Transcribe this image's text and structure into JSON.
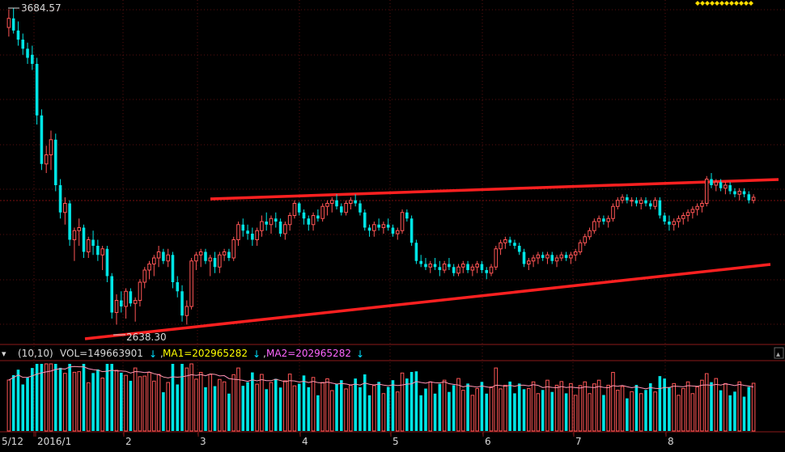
{
  "chart_data": {
    "type": "candlestick",
    "price_panel": {
      "high_label": "3684.57",
      "low_label": "2638.30",
      "y_range": [
        2580,
        3700
      ],
      "high": 3684.57,
      "low": 2638.3
    },
    "volume_panel": {
      "header_prefix": "(10,10)",
      "indicators": [
        {
          "name": "VOL",
          "text": "VOL=149663901",
          "color": "#dddddd"
        },
        {
          "name": "MA1",
          "text": "MA1=202965282",
          "color": "#ffff00"
        },
        {
          "name": "MA2",
          "text": "MA2=202965282",
          "color": "#ff66ff"
        }
      ]
    },
    "x_axis_labels": [
      "5/12",
      "2016/1",
      "2",
      "3",
      "4",
      "5",
      "6",
      "7",
      "8"
    ],
    "trendlines": [
      {
        "name": "resistance",
        "color": "#ff2020"
      },
      {
        "name": "support",
        "color": "#ff2020"
      }
    ],
    "candles": [
      [
        3620,
        3680,
        3590,
        3650
      ],
      [
        3650,
        3684,
        3600,
        3610
      ],
      [
        3610,
        3640,
        3560,
        3580
      ],
      [
        3580,
        3600,
        3530,
        3550
      ],
      [
        3550,
        3570,
        3500,
        3520
      ],
      [
        3530,
        3560,
        3480,
        3500
      ],
      [
        3500,
        3520,
        3300,
        3330
      ],
      [
        3330,
        3350,
        3150,
        3170
      ],
      [
        3170,
        3230,
        3140,
        3200
      ],
      [
        3200,
        3280,
        3150,
        3250
      ],
      [
        3250,
        3270,
        3080,
        3100
      ],
      [
        3100,
        3120,
        2990,
        3010
      ],
      [
        3010,
        3060,
        2970,
        3040
      ],
      [
        3040,
        3050,
        2900,
        2920
      ],
      [
        2920,
        2960,
        2850,
        2950
      ],
      [
        2950,
        2990,
        2900,
        2960
      ],
      [
        2960,
        2970,
        2860,
        2880
      ],
      [
        2880,
        2930,
        2860,
        2920
      ],
      [
        2920,
        2950,
        2870,
        2900
      ],
      [
        2900,
        2920,
        2850,
        2870
      ],
      [
        2870,
        2900,
        2820,
        2890
      ],
      [
        2890,
        2900,
        2780,
        2800
      ],
      [
        2800,
        2810,
        2660,
        2680
      ],
      [
        2680,
        2740,
        2640,
        2720
      ],
      [
        2720,
        2750,
        2680,
        2700
      ],
      [
        2700,
        2760,
        2660,
        2750
      ],
      [
        2750,
        2760,
        2700,
        2710
      ],
      [
        2710,
        2730,
        2650,
        2720
      ],
      [
        2720,
        2790,
        2700,
        2780
      ],
      [
        2780,
        2830,
        2760,
        2820
      ],
      [
        2820,
        2850,
        2790,
        2840
      ],
      [
        2840,
        2870,
        2800,
        2860
      ],
      [
        2860,
        2900,
        2830,
        2880
      ],
      [
        2880,
        2890,
        2840,
        2850
      ],
      [
        2850,
        2890,
        2830,
        2870
      ],
      [
        2870,
        2880,
        2760,
        2780
      ],
      [
        2780,
        2800,
        2730,
        2750
      ],
      [
        2750,
        2770,
        2650,
        2670
      ],
      [
        2670,
        2720,
        2640,
        2700
      ],
      [
        2700,
        2860,
        2690,
        2850
      ],
      [
        2850,
        2880,
        2820,
        2870
      ],
      [
        2870,
        2890,
        2830,
        2880
      ],
      [
        2880,
        2890,
        2840,
        2850
      ],
      [
        2850,
        2870,
        2800,
        2860
      ],
      [
        2860,
        2880,
        2810,
        2830
      ],
      [
        2830,
        2880,
        2810,
        2870
      ],
      [
        2870,
        2890,
        2850,
        2880
      ],
      [
        2880,
        2890,
        2850,
        2860
      ],
      [
        2860,
        2930,
        2850,
        2920
      ],
      [
        2920,
        2980,
        2900,
        2970
      ],
      [
        2970,
        2990,
        2930,
        2950
      ],
      [
        2950,
        2970,
        2920,
        2940
      ],
      [
        2940,
        2960,
        2900,
        2920
      ],
      [
        2920,
        2960,
        2900,
        2950
      ],
      [
        2950,
        3000,
        2930,
        2980
      ],
      [
        2980,
        3010,
        2950,
        2970
      ],
      [
        2970,
        3000,
        2940,
        2990
      ],
      [
        2990,
        3010,
        2960,
        2980
      ],
      [
        2980,
        2990,
        2930,
        2940
      ],
      [
        2940,
        2980,
        2920,
        2970
      ],
      [
        2970,
        3010,
        2950,
        3000
      ],
      [
        3000,
        3050,
        2990,
        3040
      ],
      [
        3040,
        3045,
        3000,
        3010
      ],
      [
        3010,
        3020,
        2970,
        2990
      ],
      [
        2990,
        3000,
        2950,
        2970
      ],
      [
        2970,
        3010,
        2950,
        3000
      ],
      [
        3000,
        3020,
        2980,
        2990
      ],
      [
        2990,
        3040,
        2980,
        3030
      ],
      [
        3030,
        3050,
        3000,
        3040
      ],
      [
        3040,
        3060,
        3010,
        3050
      ],
      [
        3050,
        3070,
        3020,
        3030
      ],
      [
        3030,
        3040,
        3000,
        3010
      ],
      [
        3010,
        3050,
        3000,
        3040
      ],
      [
        3040,
        3060,
        3020,
        3050
      ],
      [
        3050,
        3070,
        3030,
        3040
      ],
      [
        3040,
        3050,
        3000,
        3010
      ],
      [
        3010,
        3020,
        2950,
        2960
      ],
      [
        2960,
        2970,
        2930,
        2950
      ],
      [
        2950,
        2980,
        2930,
        2970
      ],
      [
        2970,
        2990,
        2950,
        2960
      ],
      [
        2960,
        2980,
        2940,
        2970
      ],
      [
        2970,
        2990,
        2950,
        2960
      ],
      [
        2960,
        2970,
        2930,
        2940
      ],
      [
        2940,
        2960,
        2920,
        2950
      ],
      [
        2950,
        3020,
        2940,
        3010
      ],
      [
        3010,
        3020,
        2980,
        2990
      ],
      [
        2990,
        3000,
        2900,
        2910
      ],
      [
        2910,
        2920,
        2840,
        2850
      ],
      [
        2850,
        2870,
        2830,
        2840
      ],
      [
        2840,
        2860,
        2820,
        2830
      ],
      [
        2830,
        2850,
        2810,
        2840
      ],
      [
        2840,
        2860,
        2820,
        2830
      ],
      [
        2830,
        2850,
        2800,
        2820
      ],
      [
        2820,
        2850,
        2810,
        2840
      ],
      [
        2840,
        2860,
        2820,
        2830
      ],
      [
        2830,
        2840,
        2800,
        2810
      ],
      [
        2810,
        2840,
        2800,
        2830
      ],
      [
        2830,
        2850,
        2810,
        2840
      ],
      [
        2840,
        2850,
        2810,
        2820
      ],
      [
        2820,
        2840,
        2800,
        2830
      ],
      [
        2830,
        2850,
        2810,
        2840
      ],
      [
        2840,
        2850,
        2810,
        2820
      ],
      [
        2820,
        2830,
        2790,
        2810
      ],
      [
        2810,
        2840,
        2800,
        2830
      ],
      [
        2830,
        2900,
        2820,
        2890
      ],
      [
        2890,
        2920,
        2870,
        2910
      ],
      [
        2910,
        2930,
        2890,
        2920
      ],
      [
        2920,
        2930,
        2900,
        2910
      ],
      [
        2910,
        2920,
        2890,
        2900
      ],
      [
        2900,
        2910,
        2870,
        2880
      ],
      [
        2880,
        2890,
        2830,
        2840
      ],
      [
        2840,
        2860,
        2820,
        2850
      ],
      [
        2850,
        2870,
        2830,
        2860
      ],
      [
        2860,
        2880,
        2840,
        2870
      ],
      [
        2870,
        2880,
        2850,
        2860
      ],
      [
        2860,
        2880,
        2840,
        2870
      ],
      [
        2870,
        2880,
        2840,
        2850
      ],
      [
        2850,
        2870,
        2830,
        2860
      ],
      [
        2860,
        2880,
        2850,
        2870
      ],
      [
        2870,
        2880,
        2850,
        2860
      ],
      [
        2860,
        2880,
        2840,
        2870
      ],
      [
        2870,
        2890,
        2850,
        2880
      ],
      [
        2880,
        2920,
        2870,
        2910
      ],
      [
        2910,
        2940,
        2900,
        2930
      ],
      [
        2930,
        2960,
        2920,
        2950
      ],
      [
        2950,
        2990,
        2940,
        2980
      ],
      [
        2980,
        3000,
        2960,
        2990
      ],
      [
        2990,
        3000,
        2970,
        2980
      ],
      [
        2980,
        3000,
        2960,
        2990
      ],
      [
        2990,
        3040,
        2980,
        3030
      ],
      [
        3030,
        3060,
        3020,
        3050
      ],
      [
        3050,
        3070,
        3040,
        3060
      ],
      [
        3060,
        3070,
        3040,
        3050
      ],
      [
        3050,
        3060,
        3030,
        3050
      ],
      [
        3050,
        3060,
        3030,
        3040
      ],
      [
        3040,
        3060,
        3020,
        3050
      ],
      [
        3050,
        3060,
        3030,
        3040
      ],
      [
        3040,
        3050,
        3020,
        3030
      ],
      [
        3030,
        3060,
        3020,
        3050
      ],
      [
        3050,
        3060,
        2990,
        3000
      ],
      [
        3000,
        3010,
        2970,
        2980
      ],
      [
        2980,
        3000,
        2950,
        2970
      ],
      [
        2970,
        2990,
        2950,
        2980
      ],
      [
        2980,
        3000,
        2960,
        2990
      ],
      [
        2990,
        3010,
        2970,
        3000
      ],
      [
        3000,
        3020,
        2980,
        3010
      ],
      [
        3010,
        3030,
        2990,
        3020
      ],
      [
        3020,
        3040,
        3000,
        3030
      ],
      [
        3030,
        3050,
        3010,
        3040
      ],
      [
        3040,
        3130,
        3030,
        3120
      ],
      [
        3120,
        3140,
        3090,
        3100
      ],
      [
        3100,
        3120,
        3080,
        3110
      ],
      [
        3110,
        3120,
        3080,
        3090
      ],
      [
        3090,
        3110,
        3070,
        3100
      ],
      [
        3100,
        3110,
        3070,
        3080
      ],
      [
        3080,
        3090,
        3060,
        3070
      ],
      [
        3070,
        3090,
        3050,
        3080
      ],
      [
        3080,
        3090,
        3060,
        3070
      ],
      [
        3070,
        3080,
        3040,
        3050
      ],
      [
        3050,
        3070,
        3040,
        3060
      ]
    ]
  }
}
